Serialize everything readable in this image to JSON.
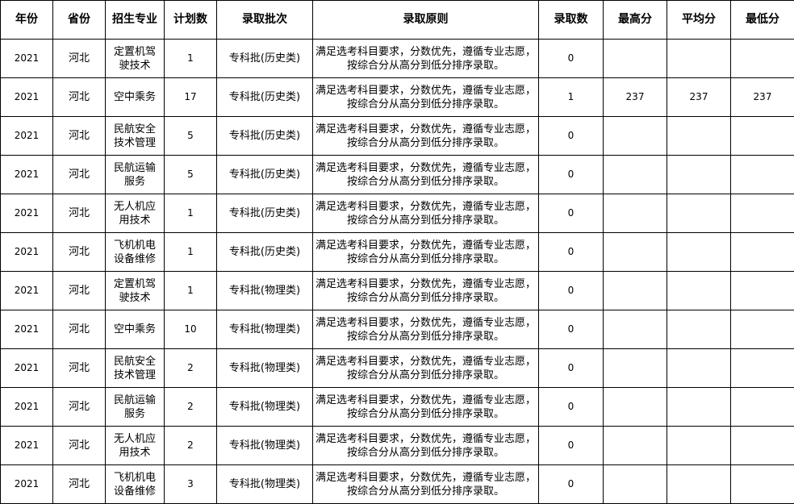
{
  "headers": [
    "年份",
    "省份",
    "招生专业",
    "计划数",
    "录取批次",
    "录取原则",
    "录取数",
    "最高分",
    "平均分",
    "最低分"
  ],
  "rows": [
    [
      "2021",
      "河北",
      "定置机驾驶技术",
      "1",
      "专科批(历史类)",
      "满足选考科目要求，分数优先，遵循专业志愿，按综合分从高分到低分排序录取。",
      "0",
      "",
      "",
      ""
    ],
    [
      "2021",
      "河北",
      "空中乘务",
      "17",
      "专科批(历史类)",
      "满足选考科目要求，分数优先，遵循专业志愿，按综合分从高分到低分排序录取。",
      "1",
      "237",
      "237",
      "237"
    ],
    [
      "2021",
      "河北",
      "民航安全技术管理",
      "5",
      "专科批(历史类)",
      "满足选考科目要求，分数优先，遵循专业志愿，按综合分从高分到低分排序录取。",
      "0",
      "",
      "",
      ""
    ],
    [
      "2021",
      "河北",
      "民航运输服务",
      "5",
      "专科批(历史类)",
      "满足选考科目要求，分数优先，遵循专业志愿，按综合分从高分到低分排序录取。",
      "0",
      "",
      "",
      ""
    ],
    [
      "2021",
      "河北",
      "无人机应用技术",
      "1",
      "专科批(历史类)",
      "满足选考科目要求，分数优先，遵循专业志愿，按综合分从高分到低分排序录取。",
      "0",
      "",
      "",
      ""
    ],
    [
      "2021",
      "河北",
      "飞机机电设备维修",
      "1",
      "专科批(历史类)",
      "满足选考科目要求，分数优先，遵循专业志愿，按综合分从高分到低分排序录取。",
      "0",
      "",
      "",
      ""
    ],
    [
      "2021",
      "河北",
      "定置机驾驶技术",
      "1",
      "专科批(物理类)",
      "满足选考科目要求，分数优先，遵循专业志愿，按综合分从高分到低分排序录取。",
      "0",
      "",
      "",
      ""
    ],
    [
      "2021",
      "河北",
      "空中乘务",
      "10",
      "专科批(物理类)",
      "满足选考科目要求，分数优先，遵循专业志愿，按综合分从高分到低分排序录取。",
      "0",
      "",
      "",
      ""
    ],
    [
      "2021",
      "河北",
      "民航安全技术管理",
      "2",
      "专科批(物理类)",
      "满足选考科目要求，分数优先，遵循专业志愿，按综合分从高分到低分排序录取。",
      "0",
      "",
      "",
      ""
    ],
    [
      "2021",
      "河北",
      "民航运输服务",
      "2",
      "专科批(物理类)",
      "满足选考科目要求，分数优先，遵循专业志愿，按综合分从高分到低分排序录取。",
      "0",
      "",
      "",
      ""
    ],
    [
      "2021",
      "河北",
      "无人机应用技术",
      "2",
      "专科批(物理类)",
      "满足选考科目要求，分数优先，遵循专业志愿，按综合分从高分到低分排序录取。",
      "0",
      "",
      "",
      ""
    ],
    [
      "2021",
      "河北",
      "飞机机电设备维修",
      "3",
      "专科批(物理类)",
      "满足选考科目要求，分数优先，遵循专业志愿，按综合分从高分到低分排序录取。",
      "0",
      "",
      "",
      ""
    ]
  ]
}
